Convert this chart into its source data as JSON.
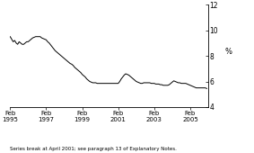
{
  "title": "",
  "ylabel": "%",
  "ylim": [
    4,
    12
  ],
  "yticks": [
    4,
    6,
    8,
    10,
    12
  ],
  "xlabel": "",
  "footnote": "Series break at April 2001; see paragraph 13 of Explanatory Notes.",
  "line_color": "#000000",
  "background_color": "#ffffff",
  "x_tick_labels": [
    "Feb\n1995",
    "Feb\n1997",
    "Feb\n1999",
    "Feb\n2001",
    "Feb\n2003",
    "Feb\n2005"
  ],
  "x_tick_positions": [
    0,
    24,
    48,
    72,
    96,
    120
  ],
  "data_x": [
    0,
    1,
    2,
    3,
    4,
    5,
    6,
    7,
    8,
    9,
    10,
    11,
    12,
    13,
    14,
    15,
    16,
    17,
    18,
    19,
    20,
    21,
    22,
    23,
    24,
    25,
    26,
    27,
    28,
    29,
    30,
    31,
    32,
    33,
    34,
    35,
    36,
    37,
    38,
    39,
    40,
    41,
    42,
    43,
    44,
    45,
    46,
    47,
    48,
    49,
    50,
    51,
    52,
    53,
    54,
    55,
    56,
    57,
    58,
    59,
    60,
    61,
    62,
    63,
    64,
    65,
    66,
    67,
    68,
    69,
    70,
    71,
    72,
    73,
    74,
    75,
    76,
    77,
    78,
    79,
    80,
    81,
    82,
    83,
    84,
    85,
    86,
    87,
    88,
    89,
    90,
    91,
    92,
    93,
    94,
    95,
    96,
    97,
    98,
    99,
    100,
    101,
    102,
    103,
    104,
    105,
    106,
    107,
    108,
    109,
    110,
    111,
    112,
    113,
    114,
    115,
    116,
    117,
    118,
    119,
    120,
    121,
    122,
    123,
    124,
    125,
    126,
    127,
    128,
    129,
    130,
    131
  ],
  "data_y": [
    9.5,
    9.3,
    9.1,
    9.2,
    9.0,
    8.9,
    9.1,
    9.0,
    8.9,
    8.9,
    9.0,
    9.1,
    9.1,
    9.2,
    9.3,
    9.4,
    9.45,
    9.5,
    9.5,
    9.5,
    9.5,
    9.4,
    9.35,
    9.3,
    9.25,
    9.1,
    9.0,
    8.85,
    8.7,
    8.55,
    8.4,
    8.3,
    8.2,
    8.1,
    8.0,
    7.9,
    7.8,
    7.7,
    7.6,
    7.5,
    7.4,
    7.35,
    7.25,
    7.1,
    7.0,
    6.9,
    6.8,
    6.7,
    6.55,
    6.45,
    6.35,
    6.2,
    6.1,
    6.0,
    5.95,
    5.9,
    5.9,
    5.9,
    5.85,
    5.85,
    5.85,
    5.85,
    5.85,
    5.85,
    5.85,
    5.85,
    5.85,
    5.85,
    5.85,
    5.85,
    5.85,
    5.85,
    5.85,
    6.0,
    6.2,
    6.35,
    6.5,
    6.6,
    6.55,
    6.5,
    6.4,
    6.3,
    6.2,
    6.1,
    6.0,
    5.95,
    5.9,
    5.85,
    5.85,
    5.9,
    5.9,
    5.9,
    5.9,
    5.9,
    5.85,
    5.85,
    5.85,
    5.8,
    5.8,
    5.8,
    5.75,
    5.75,
    5.7,
    5.7,
    5.7,
    5.7,
    5.75,
    5.85,
    5.95,
    6.05,
    6.0,
    5.95,
    5.9,
    5.9,
    5.85,
    5.85,
    5.85,
    5.85,
    5.8,
    5.75,
    5.7,
    5.65,
    5.6,
    5.55,
    5.5,
    5.5,
    5.5,
    5.5,
    5.5,
    5.5,
    5.5,
    5.45
  ]
}
